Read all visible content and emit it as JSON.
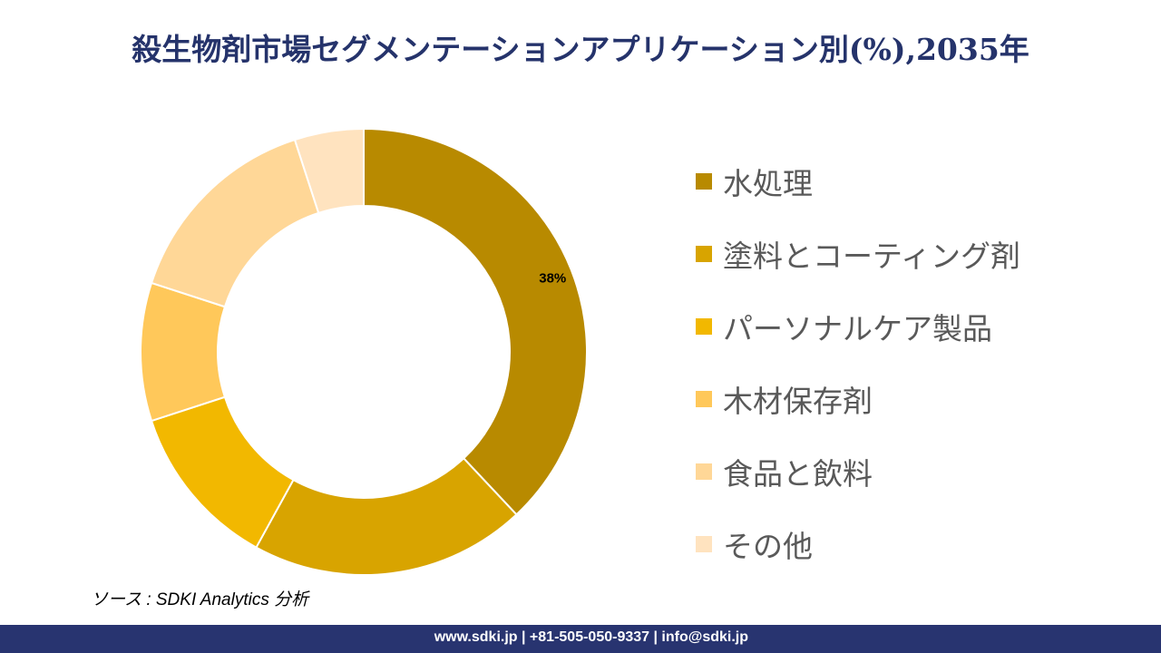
{
  "chart_data": {
    "type": "pie",
    "variant": "donut",
    "title": "殺生物剤市場セグメンテーションアプリケーション別(%),2035年",
    "categories": [
      "水処理",
      "塗料とコーティング剤",
      "パーソナルケア製品",
      "木材保存剤",
      "食品と飲料",
      "その他"
    ],
    "values": [
      38,
      20,
      12,
      10,
      15,
      5
    ],
    "data_labels": [
      "38%",
      "",
      "",
      "",
      "",
      ""
    ],
    "colors": [
      "#B88A00",
      "#D8A400",
      "#F2B800",
      "#FFC85A",
      "#FFD797",
      "#FFE3BF"
    ],
    "legend_position": "right"
  },
  "source": "ソース : SDKI Analytics 分析",
  "footer": "www.sdki.jp | +81-505-050-9337 | info@sdki.jp"
}
